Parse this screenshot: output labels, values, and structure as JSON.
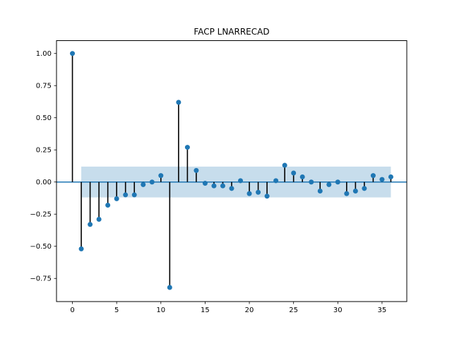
{
  "chart_data": {
    "type": "stem",
    "title": "FACP LNARRECAD",
    "xlabel": "",
    "ylabel": "",
    "xlim": [
      -1.8,
      37.8
    ],
    "ylim": [
      -0.93,
      1.1
    ],
    "xticks": [
      "0",
      "5",
      "10",
      "15",
      "20",
      "25",
      "30",
      "35"
    ],
    "yticks": [
      "1.00",
      "0.75",
      "0.50",
      "0.25",
      "0.00",
      "−0.25",
      "−0.50",
      "−0.75"
    ],
    "grid": false,
    "legend": "none",
    "confidence_band": {
      "lower": -0.12,
      "upper": 0.12,
      "from_lag": 1,
      "to_lag": 36
    },
    "x": [
      0,
      1,
      2,
      3,
      4,
      5,
      6,
      7,
      8,
      9,
      10,
      11,
      12,
      13,
      14,
      15,
      16,
      17,
      18,
      19,
      20,
      21,
      22,
      23,
      24,
      25,
      26,
      27,
      28,
      29,
      30,
      31,
      32,
      33,
      34,
      35,
      36
    ],
    "values": [
      1.0,
      -0.52,
      -0.33,
      -0.29,
      -0.18,
      -0.13,
      -0.1,
      -0.1,
      -0.02,
      0.0,
      0.05,
      -0.82,
      0.62,
      0.27,
      0.09,
      -0.01,
      -0.03,
      -0.03,
      -0.05,
      0.01,
      -0.09,
      -0.08,
      -0.11,
      0.01,
      0.13,
      0.07,
      0.04,
      0.0,
      -0.07,
      -0.02,
      0.0,
      -0.09,
      -0.07,
      -0.05,
      0.05,
      0.02,
      0.04
    ],
    "colors": {
      "marker": "#1f77b4",
      "stem": "#000000",
      "band": "#1f77b4",
      "zero_line": "#1f77b4"
    }
  }
}
